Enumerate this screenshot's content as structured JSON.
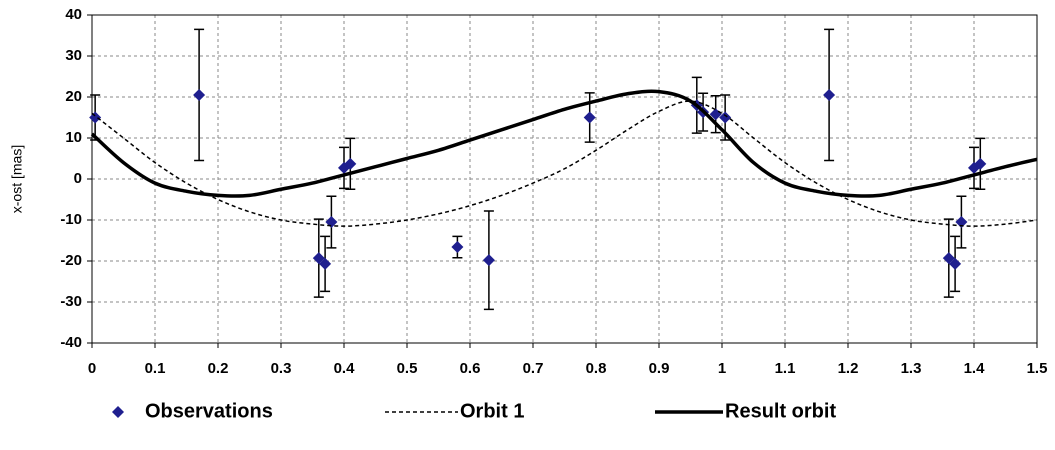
{
  "chart_data": {
    "type": "scatter",
    "y_label": "x-ost [mas]",
    "xlim": [
      0,
      1.5
    ],
    "xticks": [
      0,
      0.1,
      0.2,
      0.3,
      0.4,
      0.5,
      0.6,
      0.7,
      0.8,
      0.9,
      1,
      1.1,
      1.2,
      1.3,
      1.4,
      1.5
    ],
    "ylim": [
      -40,
      40
    ],
    "yticks": [
      -40,
      -30,
      -20,
      -10,
      0,
      10,
      20,
      30,
      40
    ],
    "grid": true,
    "legend": "bottom",
    "series": [
      {
        "name": "Observations",
        "color": "#1f1f8f",
        "style": "marker",
        "x": [
          0.005,
          0.17,
          0.36,
          0.37,
          0.38,
          0.4,
          0.41,
          0.58,
          0.63,
          0.79,
          0.96,
          0.97,
          0.99,
          1.005,
          1.17,
          1.36,
          1.37,
          1.38,
          1.4,
          1.41
        ],
        "values": [
          15,
          20.5,
          -19.3,
          -20.7,
          -10.5,
          2.7,
          3.7,
          -16.6,
          -19.8,
          15,
          18,
          16.3,
          15.8,
          15,
          20.5,
          -19.3,
          -20.7,
          -10.5,
          2.7,
          3.7
        ],
        "errors": [
          5.5,
          16,
          9.5,
          6.7,
          6.3,
          5,
          6.2,
          2.6,
          12,
          6,
          6.8,
          4.6,
          4.5,
          5.5,
          16,
          9.5,
          6.7,
          6.3,
          5,
          6.2
        ]
      },
      {
        "name": "Orbit 1",
        "color": "#000000",
        "style": "dotted",
        "x": [
          0,
          0.05,
          0.1,
          0.15,
          0.2,
          0.25,
          0.3,
          0.35,
          0.4,
          0.45,
          0.5,
          0.55,
          0.6,
          0.65,
          0.7,
          0.75,
          0.8,
          0.85,
          0.9,
          0.95,
          1,
          1.05,
          1.1,
          1.15,
          1.2,
          1.25,
          1.3,
          1.35,
          1.4,
          1.45,
          1.5
        ],
        "values": [
          16,
          10,
          4,
          -1,
          -5,
          -8,
          -10,
          -11,
          -11.5,
          -11,
          -10,
          -8.5,
          -6.5,
          -4,
          -1,
          2.5,
          7,
          12,
          16.5,
          19,
          16,
          10,
          4,
          -1,
          -5,
          -8,
          -10,
          -11,
          -11.5,
          -11,
          -10
        ]
      },
      {
        "name": "Result orbit",
        "color": "#000000",
        "style": "solid",
        "x": [
          0,
          0.05,
          0.1,
          0.15,
          0.2,
          0.25,
          0.3,
          0.35,
          0.4,
          0.45,
          0.5,
          0.55,
          0.6,
          0.65,
          0.7,
          0.75,
          0.8,
          0.85,
          0.9,
          0.95,
          1,
          1.05,
          1.1,
          1.15,
          1.2,
          1.25,
          1.3,
          1.35,
          1.4,
          1.45,
          1.5
        ],
        "values": [
          11,
          4,
          -1,
          -3,
          -4,
          -4,
          -2.5,
          -1,
          1,
          3,
          5,
          7,
          9.5,
          12,
          14.5,
          17,
          19,
          20.8,
          21.3,
          19,
          12,
          4,
          -1,
          -3,
          -4,
          -4,
          -2.5,
          -1,
          1,
          3,
          4.8
        ]
      }
    ]
  }
}
